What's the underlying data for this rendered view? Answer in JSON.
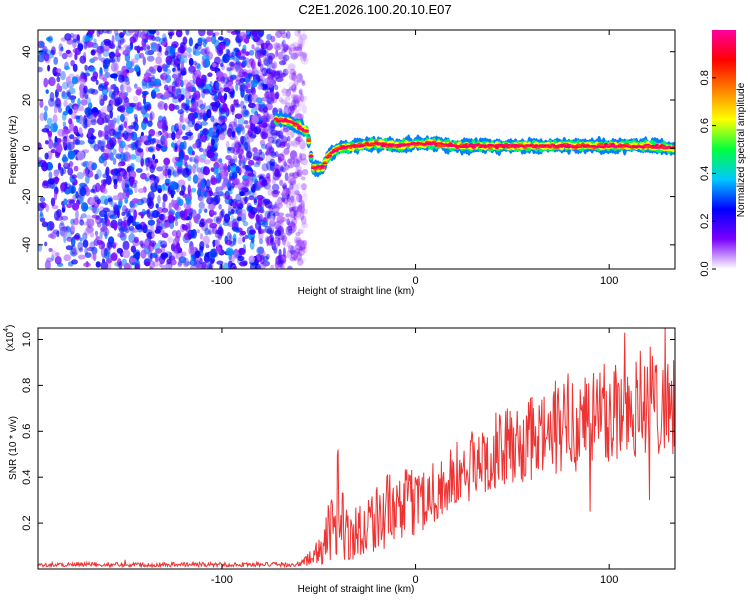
{
  "title": "C2E1.2026.100.20.10.E07",
  "chart_data": [
    {
      "type": "heatmap",
      "title": "C2E1.2026.100.20.10.E07",
      "xlabel": "Height of straight line (km)",
      "ylabel": "Frequency (Hz)",
      "xlim": [
        -195,
        134
      ],
      "ylim": [
        -50,
        49
      ],
      "xticks": [
        -100,
        0,
        100
      ],
      "yticks": [
        -40,
        -20,
        0,
        20,
        40
      ],
      "colorbar": {
        "label": "Normalized spectral amplitude",
        "range": [
          0,
          1
        ],
        "ticks": [
          0.0,
          0.2,
          0.4,
          0.6,
          0.8
        ],
        "tick_labels": [
          "0.0",
          "0.2",
          "0.4",
          "0.6",
          "0.8"
        ],
        "colors": [
          "#ffffff",
          "#7a00ff",
          "#0000ff",
          "#00c8ff",
          "#00ff40",
          "#ffff00",
          "#ff8000",
          "#ff0000",
          "#ff00a0"
        ]
      },
      "noise_region": {
        "x_range": [
          -195,
          -57
        ],
        "amplitude_range": [
          0.05,
          0.35
        ]
      },
      "signal_track": [
        {
          "x": -72,
          "freq": 12
        },
        {
          "x": -65,
          "freq": 11
        },
        {
          "x": -60,
          "freq": 9
        },
        {
          "x": -56,
          "freq": 7
        },
        {
          "x": -53,
          "freq": -8
        },
        {
          "x": -48,
          "freq": -8
        },
        {
          "x": -45,
          "freq": -3
        },
        {
          "x": -40,
          "freq": 0
        },
        {
          "x": -30,
          "freq": 1
        },
        {
          "x": -20,
          "freq": 2
        },
        {
          "x": -10,
          "freq": 1
        },
        {
          "x": 0,
          "freq": 2
        },
        {
          "x": 10,
          "freq": 2
        },
        {
          "x": 20,
          "freq": 1
        },
        {
          "x": 40,
          "freq": 1
        },
        {
          "x": 60,
          "freq": 1
        },
        {
          "x": 80,
          "freq": 1
        },
        {
          "x": 100,
          "freq": 1
        },
        {
          "x": 120,
          "freq": 1
        },
        {
          "x": 134,
          "freq": 0
        }
      ]
    },
    {
      "type": "line",
      "xlabel": "Height of straight line (km)",
      "ylabel": "SNR (10 * v/v)",
      "y_multiplier_label": "(x10",
      "y_multiplier_exponent": "4",
      "y_multiplier_close": ")",
      "xlim": [
        -195,
        134
      ],
      "ylim": [
        0,
        1.05
      ],
      "xticks": [
        -100,
        0,
        100
      ],
      "yticks": [
        0.2,
        0.4,
        0.6,
        0.8,
        1.0
      ],
      "ytick_labels": [
        "0.2",
        "0.4",
        "0.6",
        "0.8",
        "1.0"
      ],
      "series": [
        {
          "name": "SNR",
          "color": "#ee3333",
          "envelope": [
            {
              "x": -195,
              "low": 0.01,
              "high": 0.03
            },
            {
              "x": -60,
              "low": 0.01,
              "high": 0.03
            },
            {
              "x": -48,
              "low": 0.02,
              "high": 0.15
            },
            {
              "x": -40,
              "low": 0.05,
              "high": 0.52
            },
            {
              "x": -34,
              "low": 0.03,
              "high": 0.25
            },
            {
              "x": -30,
              "low": 0.05,
              "high": 0.3
            },
            {
              "x": -20,
              "low": 0.08,
              "high": 0.4
            },
            {
              "x": -10,
              "low": 0.1,
              "high": 0.42
            },
            {
              "x": 0,
              "low": 0.15,
              "high": 0.45
            },
            {
              "x": 10,
              "low": 0.2,
              "high": 0.5
            },
            {
              "x": 20,
              "low": 0.25,
              "high": 0.55
            },
            {
              "x": 40,
              "low": 0.35,
              "high": 0.68
            },
            {
              "x": 60,
              "low": 0.38,
              "high": 0.75
            },
            {
              "x": 80,
              "low": 0.42,
              "high": 0.88
            },
            {
              "x": 100,
              "low": 0.45,
              "high": 0.95
            },
            {
              "x": 120,
              "low": 0.5,
              "high": 1.0
            },
            {
              "x": 134,
              "low": 0.5,
              "high": 0.95
            }
          ],
          "spikes": [
            {
              "x": -150,
              "y": 0.04
            },
            {
              "x": -40,
              "y": 0.52
            },
            {
              "x": 90,
              "y": 0.25
            },
            {
              "x": 108,
              "y": 1.03
            },
            {
              "x": 121,
              "y": 0.3
            },
            {
              "x": 129,
              "y": 1.06
            }
          ]
        }
      ]
    }
  ]
}
